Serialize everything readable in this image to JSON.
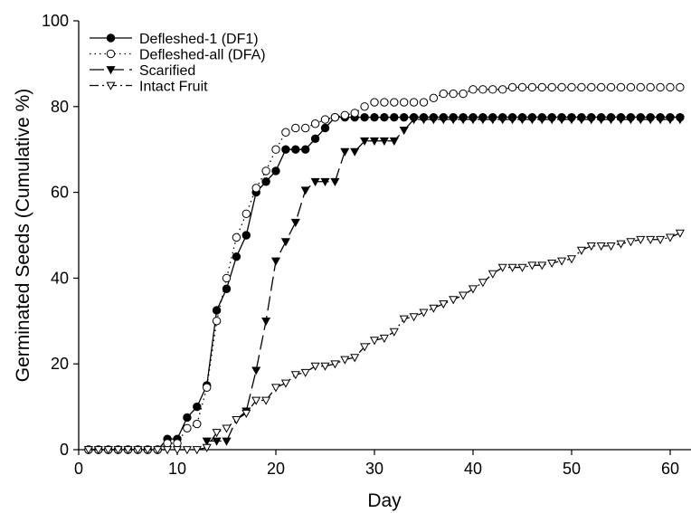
{
  "chart_data": {
    "type": "line",
    "xlabel": "Day",
    "ylabel": "Germinated Seeds (Cumulative %)",
    "xlim": [
      0,
      61
    ],
    "ylim": [
      0,
      100
    ],
    "xticks": [
      0,
      10,
      20,
      30,
      40,
      50,
      60
    ],
    "yticks": [
      0,
      20,
      40,
      60,
      80,
      100
    ],
    "grid": false,
    "legend_position": "top-left",
    "series": [
      {
        "name": "Defleshed-1 (DF1)",
        "marker": "filled-circle",
        "line": "solid",
        "color": "#000000",
        "x": [
          1,
          2,
          3,
          4,
          5,
          6,
          7,
          8,
          9,
          10,
          11,
          12,
          13,
          14,
          15,
          16,
          17,
          18,
          19,
          20,
          21,
          22,
          23,
          24,
          25,
          26,
          27,
          28,
          29,
          30,
          31,
          32,
          33,
          34,
          35,
          36,
          37,
          38,
          39,
          40,
          41,
          42,
          43,
          44,
          45,
          46,
          47,
          48,
          49,
          50,
          51,
          52,
          53,
          54,
          55,
          56,
          57,
          58,
          59,
          60,
          61
        ],
        "y": [
          0,
          0,
          0,
          0,
          0,
          0,
          0,
          0,
          2.5,
          2.5,
          7.5,
          10,
          15,
          32.5,
          37.5,
          45,
          50,
          60,
          62.5,
          65,
          70,
          70,
          70,
          72.5,
          75,
          77.5,
          77.5,
          77.5,
          77.5,
          77.5,
          77.5,
          77.5,
          77.5,
          77.5,
          77.5,
          77.5,
          77.5,
          77.5,
          77.5,
          77.5,
          77.5,
          77.5,
          77.5,
          77.5,
          77.5,
          77.5,
          77.5,
          77.5,
          77.5,
          77.5,
          77.5,
          77.5,
          77.5,
          77.5,
          77.5,
          77.5,
          77.5,
          77.5,
          77.5,
          77.5,
          77.5
        ]
      },
      {
        "name": "Defleshed-all (DFA)",
        "marker": "open-circle",
        "line": "dotted",
        "color": "#000000",
        "x": [
          1,
          2,
          3,
          4,
          5,
          6,
          7,
          8,
          9,
          10,
          11,
          12,
          13,
          14,
          15,
          16,
          17,
          18,
          19,
          20,
          21,
          22,
          23,
          24,
          25,
          26,
          27,
          28,
          29,
          30,
          31,
          32,
          33,
          34,
          35,
          36,
          37,
          38,
          39,
          40,
          41,
          42,
          43,
          44,
          45,
          46,
          47,
          48,
          49,
          50,
          51,
          52,
          53,
          54,
          55,
          56,
          57,
          58,
          59,
          60,
          61
        ],
        "y": [
          0,
          0,
          0,
          0,
          0,
          0,
          0,
          0,
          1.5,
          1.5,
          5,
          6,
          14.5,
          30,
          40,
          49.5,
          55,
          61,
          65,
          70,
          74,
          75,
          75,
          76,
          77,
          77.5,
          78,
          78.5,
          80,
          81,
          81,
          81,
          81,
          81,
          81,
          82,
          83,
          83,
          83,
          84,
          84,
          84,
          84,
          84.5,
          84.5,
          84.5,
          84.5,
          84.5,
          84.5,
          84.5,
          84.5,
          84.5,
          84.5,
          84.5,
          84.5,
          84.5,
          84.5,
          84.5,
          84.5,
          84.5,
          84.5
        ]
      },
      {
        "name": "Scarified",
        "marker": "filled-triangle-down",
        "line": "long-dash",
        "color": "#000000",
        "x": [
          13,
          14,
          15,
          16,
          17,
          18,
          19,
          20,
          21,
          22,
          23,
          24,
          25,
          26,
          27,
          28,
          29,
          30,
          31,
          32,
          33,
          34,
          35,
          36,
          37,
          38,
          39,
          40,
          41,
          42,
          43,
          44,
          45,
          46,
          47,
          48,
          49,
          50,
          51,
          52,
          53,
          54,
          55,
          56,
          57,
          58,
          59,
          60,
          61
        ],
        "y": [
          2,
          2,
          2,
          7,
          9,
          18.5,
          30,
          44,
          48.5,
          53,
          60.5,
          62.5,
          62.5,
          62.5,
          69.5,
          69.5,
          72,
          72,
          72,
          72,
          74.5,
          77,
          77,
          77,
          77,
          77,
          77,
          77,
          77,
          77,
          77,
          77,
          77,
          77,
          77,
          77,
          77,
          77,
          77,
          77,
          77,
          77,
          77,
          77,
          77,
          77,
          77,
          77,
          77
        ]
      },
      {
        "name": "Intact Fruit",
        "marker": "open-triangle-down",
        "line": "dash-dot",
        "color": "#000000",
        "x": [
          1,
          2,
          3,
          4,
          5,
          6,
          7,
          8,
          9,
          10,
          11,
          12,
          13,
          14,
          15,
          16,
          17,
          18,
          19,
          20,
          21,
          22,
          23,
          24,
          25,
          26,
          27,
          28,
          29,
          30,
          31,
          32,
          33,
          34,
          35,
          36,
          37,
          38,
          39,
          40,
          41,
          42,
          43,
          44,
          45,
          46,
          47,
          48,
          49,
          50,
          51,
          52,
          53,
          54,
          55,
          56,
          57,
          58,
          59,
          60,
          61
        ],
        "y": [
          0,
          0,
          0,
          0,
          0,
          0,
          0,
          0,
          0,
          0,
          0,
          0,
          0.5,
          4,
          5,
          7,
          8.5,
          11.5,
          11.5,
          14.5,
          15.5,
          17.5,
          18,
          19.5,
          19.5,
          20,
          21,
          21.5,
          24,
          25.5,
          26,
          27.5,
          30.5,
          31,
          32,
          33,
          34,
          35,
          36,
          37.5,
          39,
          41,
          42.5,
          42.5,
          42.5,
          43,
          43,
          43.5,
          44,
          44.5,
          46.5,
          47.5,
          47.5,
          47.5,
          48,
          48.5,
          49,
          49,
          49,
          49.5,
          50.5
        ]
      }
    ]
  }
}
